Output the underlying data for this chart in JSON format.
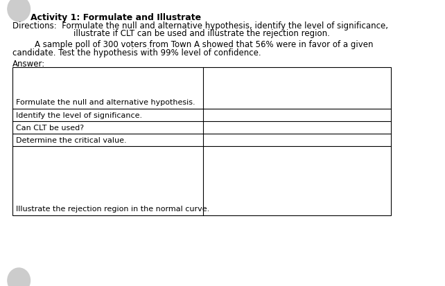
{
  "title": "Activity 1: Formulate and Illustrate",
  "directions_line1": "Directions:  Formulate the null and alternative hypothesis, identify the level of significance,",
  "directions_line2": "illustrate if CLT can be used and illustrate the rejection region.",
  "problem_line1": "A sample poll of 300 voters from Town A showed that 56% were in favor of a given",
  "problem_line2": "candidate. Test the hypothesis with 99% level of confidence.",
  "answer_label": "Answer:",
  "rows": [
    {
      "label": "Formulate the null and alternative hypothesis.",
      "tall": true
    },
    {
      "label": "Identify the level of significance.",
      "tall": false
    },
    {
      "label": "Can CLT be used?",
      "tall": false
    },
    {
      "label": "Determine the critical value.",
      "tall": false
    },
    {
      "label": "Illustrate the rejection region in the normal curve.",
      "tall": true
    }
  ],
  "background_color": "#ffffff",
  "text_color": "#000000",
  "border_color": "#000000",
  "font_size_title": 9,
  "font_size_body": 8.5,
  "font_size_table": 8.0
}
